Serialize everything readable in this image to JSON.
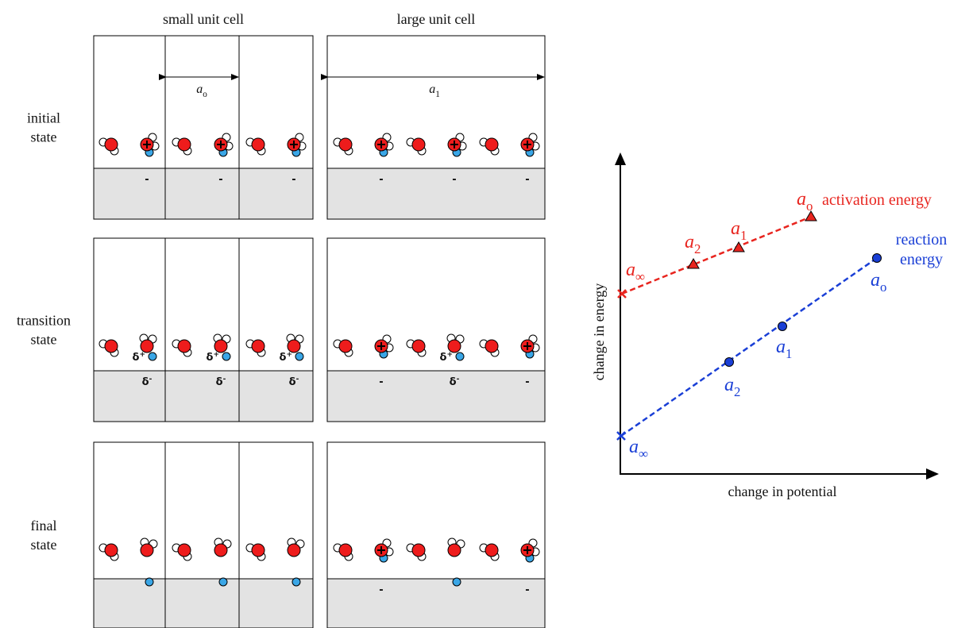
{
  "columns": [
    "small unit cell",
    "large unit cell"
  ],
  "rows": [
    [
      "initial",
      "state"
    ],
    [
      "transition",
      "state"
    ],
    [
      "final",
      "state"
    ]
  ],
  "lattice": [
    {
      "symbol": "a",
      "subscript": "o"
    },
    {
      "symbol": "a",
      "subscript": "1"
    }
  ],
  "charges": {
    "negative": "-",
    "delta": "δ",
    "plus": "+",
    "minus": "-"
  },
  "graph": {
    "y_axis_label": "change in energy",
    "x_axis_label": "change in potential",
    "series": [
      {
        "name": [
          "activation energy"
        ],
        "color": "#e8251f",
        "points": [
          {
            "symbol": "a",
            "subscript": "∞"
          },
          {
            "symbol": "a",
            "subscript": "2"
          },
          {
            "symbol": "a",
            "subscript": "1"
          },
          {
            "symbol": "a",
            "subscript": "o"
          }
        ]
      },
      {
        "name": [
          "reaction",
          "energy"
        ],
        "color": "#1a3fd6",
        "points": [
          {
            "symbol": "a",
            "subscript": "∞"
          },
          {
            "symbol": "a",
            "subscript": "2"
          },
          {
            "symbol": "a",
            "subscript": "1"
          },
          {
            "symbol": "a",
            "subscript": "o"
          }
        ]
      }
    ]
  }
}
